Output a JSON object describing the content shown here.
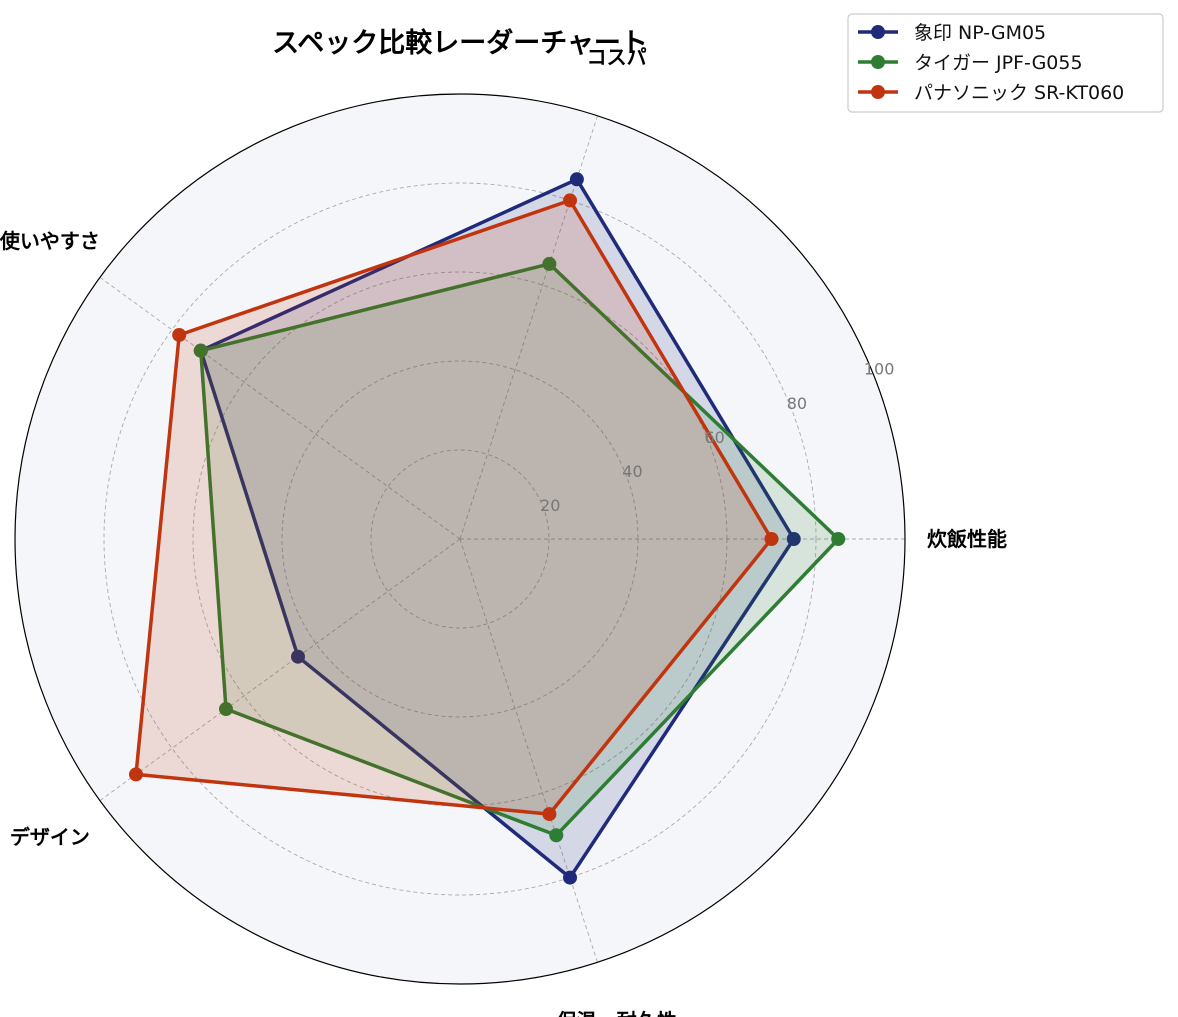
{
  "chart_data": {
    "type": "radar",
    "title": "スペック比較レーダーチャート",
    "axes": [
      "炊飯性能",
      "コスパ",
      "使いやすさ",
      "デザイン",
      "保温・耐久性"
    ],
    "rlim": [
      0,
      100
    ],
    "ticks": [
      20,
      40,
      60,
      80,
      100
    ],
    "grid": true,
    "legend_position": "top-right",
    "series": [
      {
        "name": "象印 NP-GM05",
        "color": "#1f2a7a",
        "values": [
          75,
          85,
          72,
          45,
          80
        ]
      },
      {
        "name": "タイガー JPF-G055",
        "color": "#2e7d32",
        "values": [
          85,
          65,
          72,
          65,
          70
        ]
      },
      {
        "name": "パナソニック SR-KT060",
        "color": "#c0350f",
        "values": [
          70,
          80,
          78,
          90,
          65
        ]
      }
    ]
  }
}
